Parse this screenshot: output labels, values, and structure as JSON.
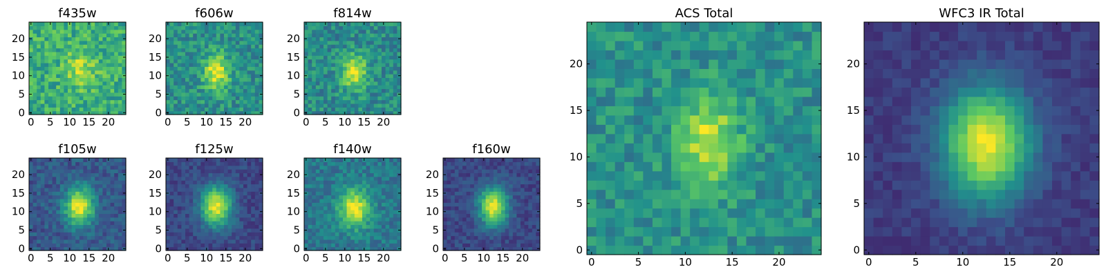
{
  "colormap": [
    "#440154",
    "#3b528b",
    "#21918c",
    "#5ec962",
    "#fde725"
  ],
  "chart_data": [
    {
      "type": "heatmap",
      "title": "f435w",
      "xlim": [
        0,
        24
      ],
      "ylim": [
        0,
        24
      ],
      "xticks": [
        0,
        5,
        10,
        15,
        20
      ],
      "yticks": [
        0,
        5,
        10,
        15,
        20
      ],
      "grid": false,
      "center": [
        13,
        12
      ],
      "sigma": [
        2.8,
        3.8
      ],
      "peak": 0.25,
      "base": 0.62,
      "noise": 0.34,
      "seed": 11
    },
    {
      "type": "heatmap",
      "title": "f606w",
      "xlim": [
        0,
        24
      ],
      "ylim": [
        0,
        24
      ],
      "xticks": [
        0,
        5,
        10,
        15,
        20
      ],
      "yticks": [
        0,
        5,
        10,
        15,
        20
      ],
      "grid": false,
      "center": [
        12.5,
        11
      ],
      "sigma": [
        2.2,
        3.4
      ],
      "peak": 0.5,
      "base": 0.5,
      "noise": 0.3,
      "seed": 23
    },
    {
      "type": "heatmap",
      "title": "f814w",
      "xlim": [
        0,
        24
      ],
      "ylim": [
        0,
        24
      ],
      "xticks": [
        0,
        5,
        10,
        15,
        20
      ],
      "yticks": [
        0,
        5,
        10,
        15,
        20
      ],
      "grid": false,
      "center": [
        12.5,
        11
      ],
      "sigma": [
        2.2,
        3.2
      ],
      "peak": 0.5,
      "base": 0.48,
      "noise": 0.3,
      "seed": 37
    },
    {
      "type": "heatmap",
      "title": "f105w",
      "xlim": [
        0,
        24
      ],
      "ylim": [
        0,
        24
      ],
      "xticks": [
        0,
        5,
        10,
        15,
        20
      ],
      "yticks": [
        0,
        5,
        10,
        15,
        20
      ],
      "grid": false,
      "center": [
        12.5,
        11.5
      ],
      "sigma": [
        2.6,
        3.6
      ],
      "peak": 0.72,
      "base": 0.28,
      "noise": 0.2,
      "seed": 41
    },
    {
      "type": "heatmap",
      "title": "f125w",
      "xlim": [
        0,
        24
      ],
      "ylim": [
        0,
        24
      ],
      "xticks": [
        0,
        5,
        10,
        15,
        20
      ],
      "yticks": [
        0,
        5,
        10,
        15,
        20
      ],
      "grid": false,
      "center": [
        12.5,
        11.5
      ],
      "sigma": [
        2.8,
        3.8
      ],
      "peak": 0.75,
      "base": 0.22,
      "noise": 0.16,
      "seed": 53
    },
    {
      "type": "heatmap",
      "title": "f140w",
      "xlim": [
        0,
        24
      ],
      "ylim": [
        0,
        24
      ],
      "xticks": [
        0,
        5,
        10,
        15,
        20
      ],
      "yticks": [
        0,
        5,
        10,
        15,
        20
      ],
      "grid": false,
      "center": [
        12.5,
        11
      ],
      "sigma": [
        2.8,
        3.6
      ],
      "peak": 0.58,
      "base": 0.4,
      "noise": 0.22,
      "seed": 67
    },
    {
      "type": "heatmap",
      "title": "f160w",
      "xlim": [
        0,
        24
      ],
      "ylim": [
        0,
        24
      ],
      "xticks": [
        0,
        5,
        10,
        15,
        20
      ],
      "yticks": [
        0,
        5,
        10,
        15,
        20
      ],
      "grid": false,
      "center": [
        12.5,
        11.5
      ],
      "sigma": [
        2.6,
        3.6
      ],
      "peak": 0.75,
      "base": 0.22,
      "noise": 0.16,
      "seed": 71
    },
    {
      "type": "heatmap",
      "title": "ACS Total",
      "xlim": [
        0,
        24
      ],
      "ylim": [
        0,
        24
      ],
      "xticks": [
        0,
        5,
        10,
        15,
        20
      ],
      "yticks": [
        0,
        5,
        10,
        15,
        20
      ],
      "grid": false,
      "center": [
        12.5,
        11.5
      ],
      "sigma": [
        2.2,
        3.4
      ],
      "peak": 0.45,
      "base": 0.5,
      "noise": 0.26,
      "seed": 83
    },
    {
      "type": "heatmap",
      "title": "WFC3 IR Total",
      "xlim": [
        0,
        24
      ],
      "ylim": [
        0,
        24
      ],
      "xticks": [
        0,
        5,
        10,
        15,
        20
      ],
      "yticks": [
        0,
        5,
        10,
        15,
        20
      ],
      "grid": false,
      "center": [
        12.5,
        11.5
      ],
      "sigma": [
        3.2,
        4.2
      ],
      "peak": 0.8,
      "base": 0.18,
      "noise": 0.1,
      "seed": 97
    }
  ]
}
